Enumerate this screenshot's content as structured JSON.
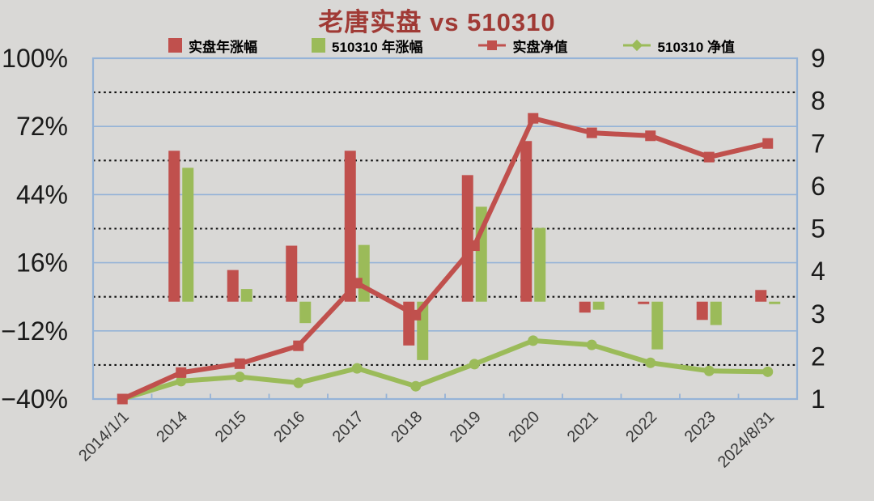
{
  "title": {
    "main": "老唐实盘",
    "suffix": " vs 510310"
  },
  "colors": {
    "bar_red": "#c0504d",
    "bar_green": "#9bbb59",
    "grid_blue": "#95b3d7",
    "dotted_black": "#111111",
    "title_red": "#a03a35",
    "axis_text": "#1a1a1a",
    "x_label_text": "#3a3a3a",
    "background": "#d9d8d6"
  },
  "chart_data": {
    "type": "bar",
    "subtype": "combo-bar-line-dual-axis",
    "title": "老唐实盘 vs 510310",
    "categories": [
      "2014/1/1",
      "2014",
      "2015",
      "2016",
      "2017",
      "2018",
      "2019",
      "2020",
      "2021",
      "2022",
      "2023",
      "2024/8/31"
    ],
    "series": [
      {
        "name": "实盘年涨幅",
        "type": "bar",
        "axis": "left",
        "color": "#c0504d",
        "values": [
          null,
          62,
          13,
          23,
          62,
          -18,
          52,
          66,
          -4.5,
          -1,
          -7.5,
          4.8
        ]
      },
      {
        "name": "510310 年涨幅",
        "type": "bar",
        "axis": "left",
        "color": "#9bbb59",
        "values": [
          null,
          55,
          5.2,
          -8.8,
          23.3,
          -24,
          39,
          30.3,
          -3.3,
          -19.6,
          -9.6,
          -1
        ]
      },
      {
        "name": "实盘净值",
        "type": "line",
        "axis": "right",
        "color": "#c0504d",
        "marker": "square",
        "values": [
          1.0,
          1.62,
          1.83,
          2.25,
          3.72,
          2.97,
          4.6,
          7.59,
          7.25,
          7.18,
          6.68,
          7.0
        ]
      },
      {
        "name": "510310 净值",
        "type": "line",
        "axis": "right",
        "color": "#9bbb59",
        "marker": "circle",
        "values": [
          1.0,
          1.42,
          1.52,
          1.38,
          1.72,
          1.3,
          1.82,
          2.37,
          2.27,
          1.85,
          1.66,
          1.64
        ]
      }
    ],
    "left_axis": {
      "tick_labels": [
        "100%",
        "72%",
        "44%",
        "16%",
        "−12%",
        "−40%"
      ],
      "tick_values": [
        100,
        72,
        44,
        16,
        -12,
        -40
      ],
      "min": -40,
      "max": 100
    },
    "right_axis": {
      "tick_labels": [
        "9",
        "8",
        "7",
        "6",
        "5",
        "4",
        "3",
        "2",
        "1"
      ],
      "tick_values": [
        9,
        8,
        7,
        6,
        5,
        4,
        3,
        2,
        1
      ],
      "min": 1,
      "max": 9
    },
    "dotted_gridline_values": [
      86,
      58,
      30,
      2,
      -26
    ],
    "solid_gridline_values": [
      100,
      72,
      44,
      16,
      -12,
      -40
    ],
    "grid": true,
    "legend_position": "top"
  }
}
